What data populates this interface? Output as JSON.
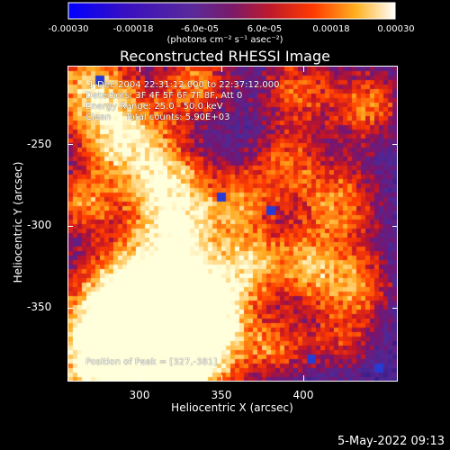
{
  "colorbar": {
    "ticks": [
      "-0.00030",
      "-0.00018",
      "-6.0e-05",
      "6.0e-05",
      "0.00018",
      "0.00030"
    ],
    "units": "(photons cm⁻² s⁻¹ asec⁻²)",
    "colors": [
      "#0000ff",
      "#5a1a9a",
      "#4b1a8c",
      "#9a1a5a",
      "#e01a0a",
      "#ff8a0a",
      "#ffffff"
    ]
  },
  "title": "Reconstructed RHESSI Image",
  "info": {
    "line1": " 1-Dec-2004 22:31:12.000 to 22:37:12.000",
    "line2": "Detectors: 3F 4F 5F 6F 7F 8F, Att 0",
    "line3": "Energy Range: 25.0 - 50.0 keV",
    "line4": "Clean     Total counts: 5.90E+03",
    "peak": "Position of Peak = [327,-381]"
  },
  "axes": {
    "xlabel": "Heliocentric X (arcsec)",
    "ylabel": "Heliocentric Y (arcsec)",
    "xticks": [
      "300",
      "350",
      "400"
    ],
    "yticks": [
      "-250",
      "-300",
      "-350"
    ]
  },
  "timestamp": "5-May-2022 09:13"
}
